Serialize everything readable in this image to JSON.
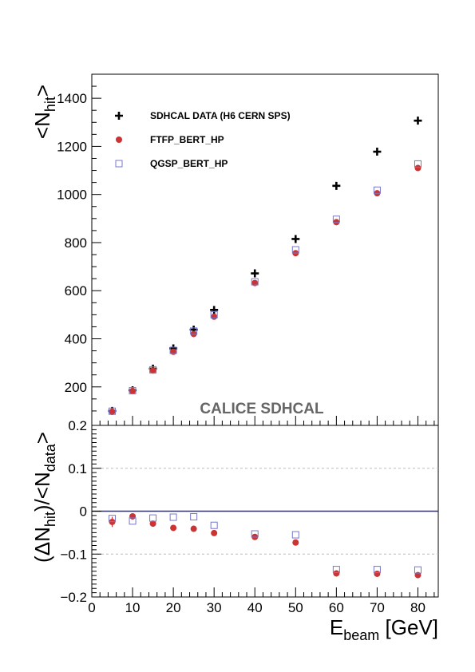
{
  "chart_data": [
    {
      "type": "scatter",
      "panel": "main",
      "x": [
        5,
        10,
        15,
        20,
        25,
        30,
        40,
        50,
        60,
        70,
        80
      ],
      "series": [
        {
          "name": "SDHCAL DATA (H6 CERN SPS)",
          "marker": "cross",
          "color": "#000000",
          "values": [
            100,
            186,
            276,
            360,
            438,
            520,
            672,
            815,
            1036,
            1178,
            1307
          ]
        },
        {
          "name": "FTFP_BERT_HP",
          "marker": "circle",
          "color": "#cc3333",
          "values": [
            97,
            183,
            268,
            346,
            420,
            492,
            632,
            756,
            885,
            1005,
            1110
          ]
        },
        {
          "name": "QGSP_BERT_HP",
          "marker": "open-square",
          "color": "#7777cc",
          "values": [
            99,
            184,
            271,
            352,
            432,
            500,
            637,
            770,
            897,
            1018,
            1127
          ]
        }
      ],
      "ylabel": {
        "main": "<N",
        "sub": "hit",
        "close": ">"
      },
      "xlim": [
        0,
        85
      ],
      "ylim": [
        40,
        1500
      ],
      "yticks": [
        200,
        400,
        600,
        800,
        1000,
        1200,
        1400
      ],
      "ytick_labels": [
        "200",
        "400",
        "600",
        "800",
        "1000",
        "1200",
        "1400"
      ],
      "legend_position": "top-left",
      "grid": false,
      "annotation": "CALICE SDHCAL"
    },
    {
      "type": "scatter",
      "panel": "ratio",
      "x": [
        5,
        10,
        15,
        20,
        25,
        30,
        40,
        50,
        60,
        70,
        80
      ],
      "series": [
        {
          "name": "FTFP_BERT_HP",
          "marker": "circle",
          "color": "#cc3333",
          "values": [
            -0.025,
            -0.012,
            -0.029,
            -0.039,
            -0.041,
            -0.051,
            -0.06,
            -0.073,
            -0.145,
            -0.146,
            -0.149
          ],
          "errors": [
            0.012,
            0.006,
            0,
            0,
            0,
            0,
            0,
            0,
            0,
            0,
            0
          ]
        },
        {
          "name": "QGSP_BERT_HP",
          "marker": "open-square",
          "color": "#7777cc",
          "values": [
            -0.017,
            -0.023,
            -0.016,
            -0.014,
            -0.013,
            -0.033,
            -0.053,
            -0.055,
            -0.136,
            -0.136,
            -0.137
          ]
        }
      ],
      "xlabel": {
        "main": "E",
        "sub": "beam",
        "rest": " [GeV]"
      },
      "ylabel": {
        "open": "(ΔN",
        "sub1": "hit",
        "mid": ")/<N",
        "sub2": "data",
        "close": ">"
      },
      "xlim": [
        0,
        85
      ],
      "ylim": [
        -0.2,
        0.2
      ],
      "xticks": [
        0,
        10,
        20,
        30,
        40,
        50,
        60,
        70,
        80
      ],
      "xtick_labels": [
        "0",
        "10",
        "20",
        "30",
        "40",
        "50",
        "60",
        "70",
        "80"
      ],
      "yticks": [
        -0.2,
        -0.1,
        0,
        0.1,
        0.2
      ],
      "ytick_labels": [
        "−0.2",
        "−0.1",
        "0",
        "0.1",
        "0.2"
      ],
      "reference_line": 0,
      "grid": "dashed at ±0.1",
      "reference_line_color": "#333366"
    }
  ]
}
